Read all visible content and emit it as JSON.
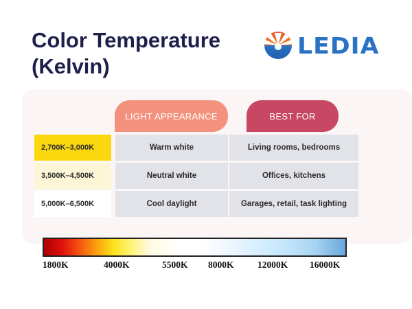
{
  "title_line1": "Color Temperature",
  "title_line2": "(Kelvin)",
  "logo": {
    "text": "LEDIA",
    "icon": "led-sunburst-logo-icon",
    "color": "#2a73c4",
    "accent": "#e8532c"
  },
  "headers": {
    "appearance": "LIGHT APPEARANCE",
    "best_for": "BEST FOR"
  },
  "rows": [
    {
      "range": "2,700K–3,000K",
      "appearance": "Warm white",
      "best_for": "Living rooms, bedrooms",
      "swatch": "#fbd70f"
    },
    {
      "range": "3,500K–4,500K",
      "appearance": "Neutral white",
      "best_for": "Offices, kitchens",
      "swatch": "#fdf6d6"
    },
    {
      "range": "5,000K–6,500K",
      "appearance": "Cool daylight",
      "best_for": "Garages, retail, task lighting",
      "swatch": "#ffffff"
    }
  ],
  "scale_ticks": [
    "1800K",
    "4000K",
    "5500K",
    "8000K",
    "12000K",
    "16000K"
  ],
  "colors": {
    "title": "#1e1f4b",
    "header_appearance": "#f4917c",
    "header_best": "#c84763",
    "cell_bg": "#e2e3e8"
  }
}
